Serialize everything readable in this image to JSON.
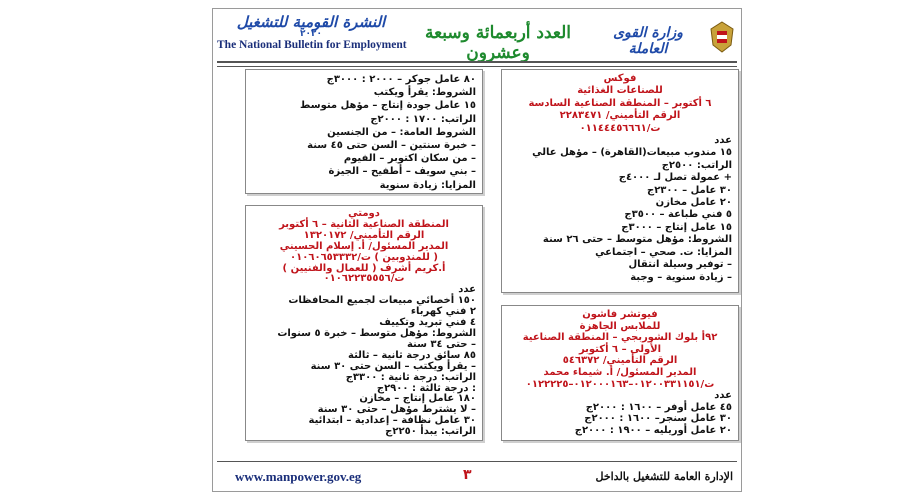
{
  "header": {
    "ministry": "وزارة القوى العاملة",
    "issue": "العدد أربعمائة وسبعة وعشرون",
    "logo_ar": "النشرة القومية للتشغيل",
    "logo_year": "٢٠٢٠",
    "logo_en": "The National Bulletin for Employment"
  },
  "boxes": [
    {
      "heading": [
        "فوكس",
        "للصناعات الغذائية",
        "٦ أكتوبر – المنطقة الصناعية السادسة",
        "الرقم التأميني/ ٢٢٨٣٤٧١",
        "ت/٠١١٤٤٤٥٦٦٦١"
      ],
      "body": [
        "عدد",
        "١٥ مندوب مبيعات(القاهرة) – مؤهل عالي",
        "الراتب: ٢٥٠٠ج",
        "+ عمولة تصل لـ ٤٠٠٠ج",
        "٣٠ عامل – ٢٣٠٠ج",
        "٢٠ عامل مخازن",
        "٥ فني طباعة – ٣٥٠٠ج",
        "١٥ عامل إنتاج – ٣٠٠٠ج",
        "الشروط: مؤهل متوسط – حتى ٢٦ سنة",
        "المزايا: ت. صحي – اجتماعي",
        "– توفير وسيلة انتقال",
        "– زيادة سنوية – وجبة"
      ]
    },
    {
      "heading": [
        "فيوتشر فاشون",
        "للملابس الجاهزة",
        "٩٢أ بلوك الشوربجي – المنطقة الصناعية",
        "الأولى – ٦ أكتوبر",
        "الرقم التأميني/ ٥٤٦٣٧٢",
        "المدير المسئول/ أ. شيماء محمد",
        "ت/٠١٢٠٠٣٣١١٥١–٠١٢٠٠٠١٦٣–٠١٢٢٢٢٥"
      ],
      "body": [
        "عدد",
        "٤٥ عامل أوفر – ١٦٠٠ : ٢٠٠٠ج",
        "٣٠ عامل سنجر– ١٦٠٠ : ٢٠٠٠ج",
        "٢٠ عامل أوريليه – ١٩٠٠ : ٢٠٠٠ج"
      ]
    },
    {
      "heading": [],
      "body": [
        "٨٠ عامل جوكر – ٢٠٠٠ : ٣٠٠٠ج",
        "الشروط: يقرأ ويكتب",
        "١٥ عامل جودة إنتاج – مؤهل متوسط",
        "الراتب: ١٧٠٠ : ٢٠٠٠ج",
        "الشروط العامة: – من الجنسين",
        "– خبرة سنتين – السن حتى ٤٥ سنة",
        "– من سكان اكتوبر – الفيوم",
        "– بني سويف – أطفيح – الجيزة",
        "المزايا: زيادة سنوية"
      ]
    },
    {
      "heading": [
        "دومتي",
        "المنطقة الصناعية الثانية – ٦ أكتوبر",
        "الرقم التأميني/ ١٣٢٠١٧٢",
        "المدير المسئول/ أ. إسلام الحسيني",
        "( للمندوبين ) ت/٠١٠٦٠٦٥٣٣٣٢",
        "أ.كريم أشرف ( للعمال والفنيين )",
        "ت/٠١٠٦٢٢٣٥٥٥٦"
      ],
      "body": [
        "عدد",
        "١٥٠ أخصائي مبيعات لجميع المحافظات",
        "٢ فني كهرباء",
        "٤ فني تبريد وتكييف",
        "الشروط: مؤهل متوسط – خبرة ٥ سنوات",
        "– حتى ٣٤ سنة",
        "٨٥ سائق درجة ثانية – ثالثة",
        "– يقرأ ويكتب – السن حتى ٣٠ سنة",
        "الراتب: درجة ثانية : ٣٣٠٠ج",
        ": درجة ثالثة : ٢٩٠٠ج",
        "١٨٠ عامل إنتاج – مخازن",
        "– لا يشترط مؤهل – حتى ٣٠ سنة",
        "٣٠ عامل نظافة – إعدادية – ابتدائية",
        "الراتب: يبدأ ٢٢٥٠ج"
      ]
    }
  ],
  "footer": {
    "website": "www.manpower.gov.eg",
    "page_number": "٣",
    "department": "الإدارة العامة للتشغيل بالداخل"
  }
}
